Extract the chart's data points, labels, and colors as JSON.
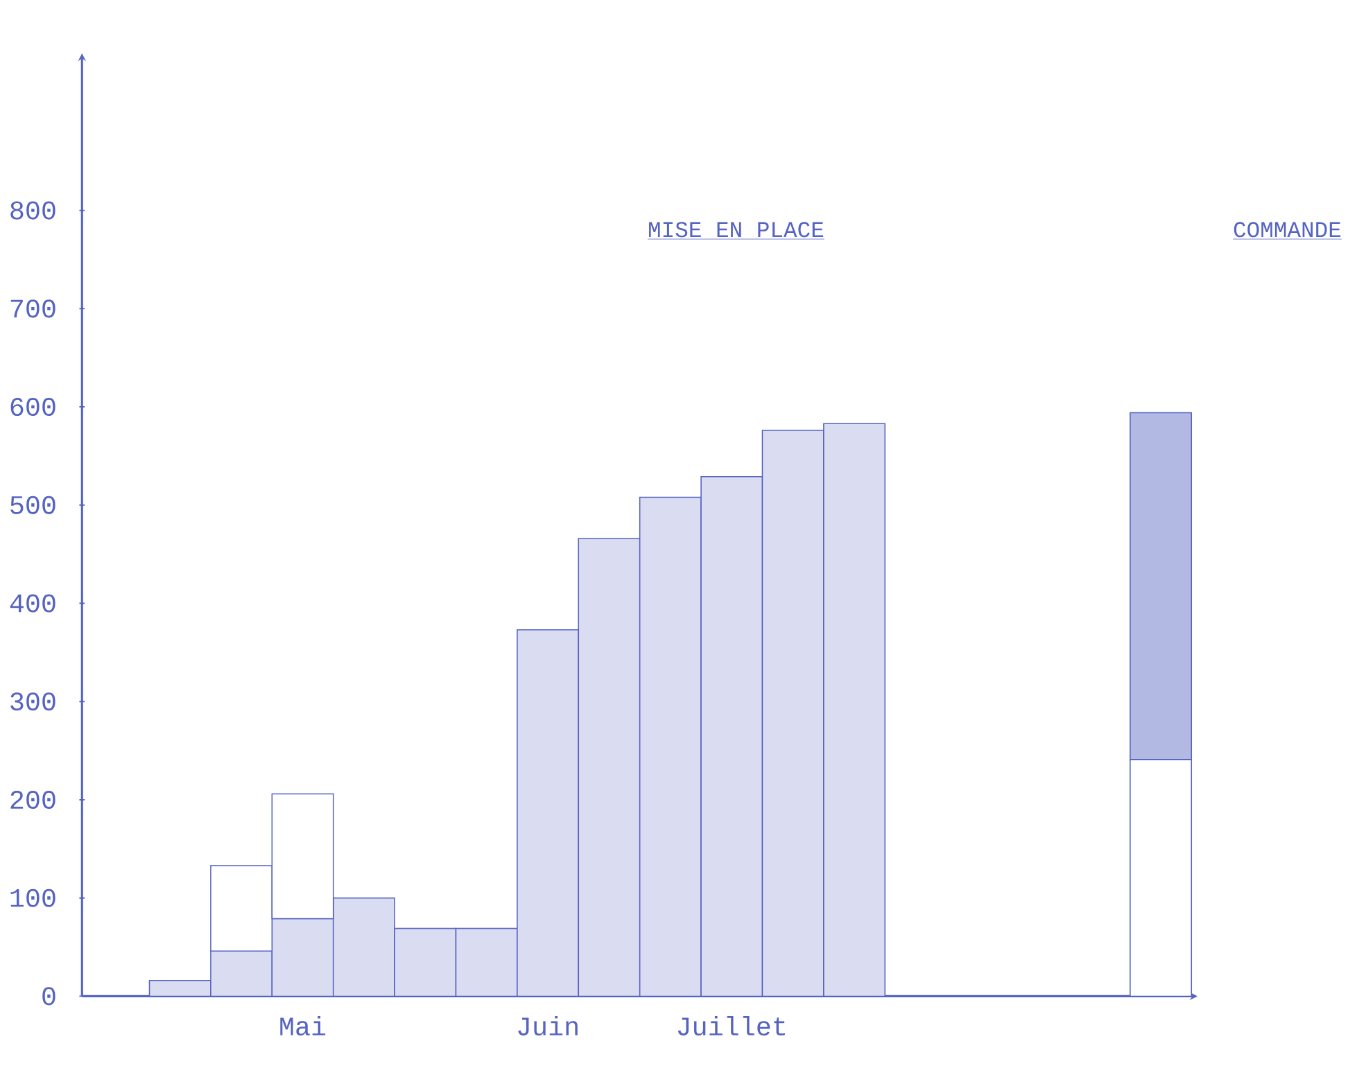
{
  "chart_data": {
    "type": "bar",
    "stacked": true,
    "categories": [
      null,
      null,
      "Mai",
      null,
      null,
      null,
      "Juin",
      null,
      null,
      "Juillet",
      null,
      null,
      null,
      null,
      null,
      null,
      null
    ],
    "series": [
      {
        "color": "#5563c1",
        "values": [
          16,
          46,
          79,
          100,
          69,
          69,
          373,
          466,
          508,
          529,
          576,
          583,
          null,
          null,
          null,
          null,
          null
        ]
      },
      {
        "color": "#5563c1",
        "values": [
          null,
          87,
          127,
          null,
          null,
          null,
          null,
          null,
          null,
          null,
          null,
          null,
          null,
          null,
          null,
          null,
          241
        ]
      },
      {
        "color": "#5563c1",
        "values": [
          null,
          null,
          null,
          null,
          null,
          null,
          null,
          null,
          null,
          null,
          null,
          null,
          null,
          null,
          null,
          null,
          353
        ]
      }
    ],
    "ylim": [
      0,
      960
    ],
    "yticks": [
      0,
      100,
      200,
      300,
      400,
      500,
      600,
      700,
      800
    ],
    "annotations": [
      "MISE EN PLACE",
      "COMMANDE"
    ]
  }
}
